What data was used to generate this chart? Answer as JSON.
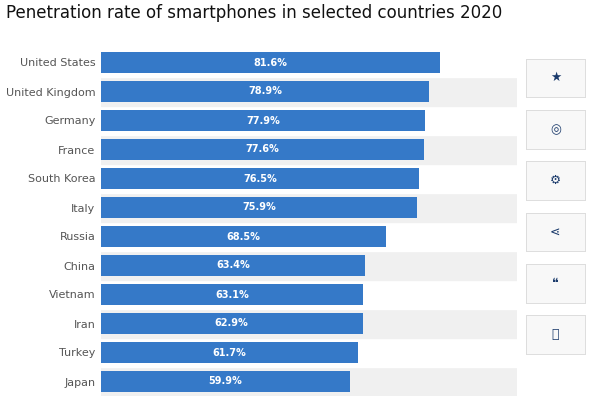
{
  "title": "Penetration rate of smartphones in selected countries 2020",
  "countries": [
    "Japan",
    "Turkey",
    "Iran",
    "Vietnam",
    "China",
    "Russia",
    "Italy",
    "South Korea",
    "France",
    "Germany",
    "United Kingdom",
    "United States"
  ],
  "values": [
    59.9,
    61.7,
    62.9,
    63.1,
    63.4,
    68.5,
    75.9,
    76.5,
    77.6,
    77.9,
    78.9,
    81.6
  ],
  "labels": [
    "59.9%",
    "61.7%",
    "62.9%",
    "63.1%",
    "63.4%",
    "68.5%",
    "75.9%",
    "76.5%",
    "77.6%",
    "77.9%",
    "78.9%",
    "81.6%"
  ],
  "bar_color": "#3579c8",
  "background_color": "#ffffff",
  "row_colors": [
    "#f0f0f0",
    "#ffffff"
  ],
  "title_fontsize": 12,
  "label_fontsize": 7,
  "tick_fontsize": 8,
  "text_color_bar": "#ffffff",
  "icon_color": "#1a3a6b",
  "xlim": [
    0,
    100
  ],
  "figsize": [
    5.94,
    4.0
  ],
  "dpi": 100,
  "icons": [
    "★",
    "▾",
    "⚙",
    "<",
    "””",
    "⎙"
  ]
}
